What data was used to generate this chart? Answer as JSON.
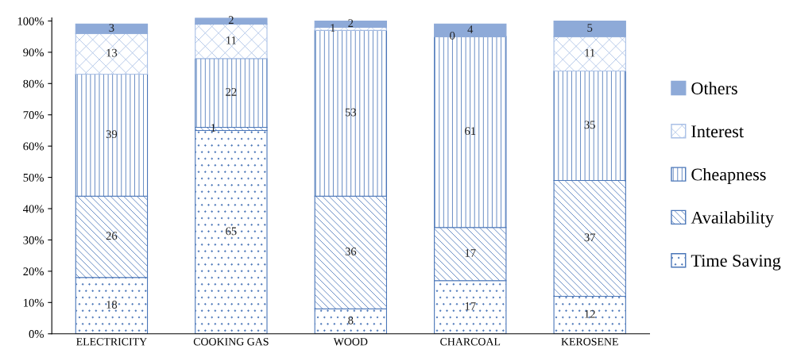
{
  "chart_data": {
    "type": "bar",
    "stacked": true,
    "categories": [
      "ELECTRICITY",
      "COOKING GAS",
      "WOOD",
      "CHARCOAL",
      "KEROSENE"
    ],
    "series": [
      {
        "name": "Time Saving",
        "color": "#4a76b8",
        "values": [
          18,
          65,
          8,
          17,
          12
        ]
      },
      {
        "name": "Availability",
        "color": "#4a76b8",
        "values": [
          26,
          1,
          36,
          17,
          37
        ]
      },
      {
        "name": "Cheapness",
        "color": "#4a76b8",
        "values": [
          39,
          22,
          53,
          61,
          35
        ]
      },
      {
        "name": "Interest",
        "color": "#a9c0e6",
        "values": [
          13,
          11,
          1,
          0,
          11
        ]
      },
      {
        "name": "Others",
        "color": "#8eaad8",
        "values": [
          3,
          2,
          2,
          4,
          5
        ]
      }
    ],
    "data_labels": true,
    "ylim": [
      0,
      101
    ],
    "yticks": [
      {
        "value": 0,
        "label": "0%"
      },
      {
        "value": 10,
        "label": "10%"
      },
      {
        "value": 20,
        "label": "20%"
      },
      {
        "value": 30,
        "label": "30%"
      },
      {
        "value": 40,
        "label": "40%"
      },
      {
        "value": 50,
        "label": "50%"
      },
      {
        "value": 60,
        "label": "60%"
      },
      {
        "value": 70,
        "label": "70%"
      },
      {
        "value": 80,
        "label": "80%"
      },
      {
        "value": 90,
        "label": "90%"
      },
      {
        "value": 100,
        "label": "100%"
      }
    ],
    "legend": "right",
    "grid": false
  }
}
